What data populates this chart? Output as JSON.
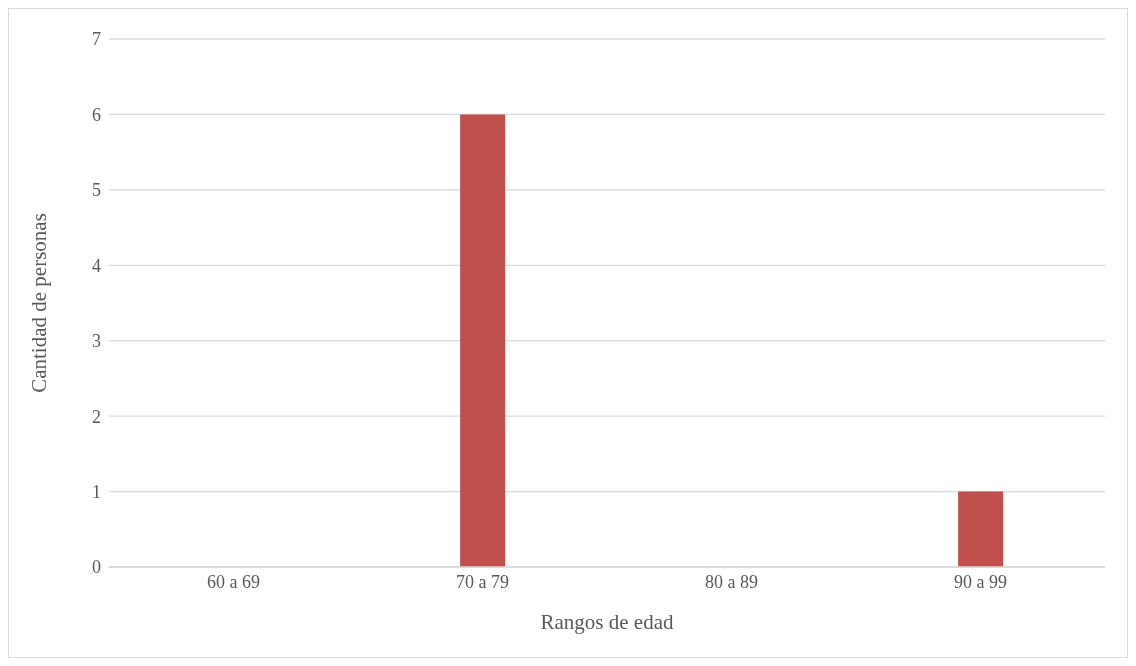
{
  "chart_data": {
    "type": "bar",
    "xlabel": "Rangos de edad",
    "ylabel": "Cantidad de personas",
    "categories": [
      "60 a 69",
      "70 a 79",
      "80 a 89",
      "90 a 99"
    ],
    "values": [
      0,
      6,
      0,
      1
    ],
    "color": "#c0504d",
    "ylim": [
      0,
      7
    ],
    "yticks": [
      0,
      1,
      2,
      3,
      4,
      5,
      6,
      7
    ],
    "grid": "y"
  }
}
